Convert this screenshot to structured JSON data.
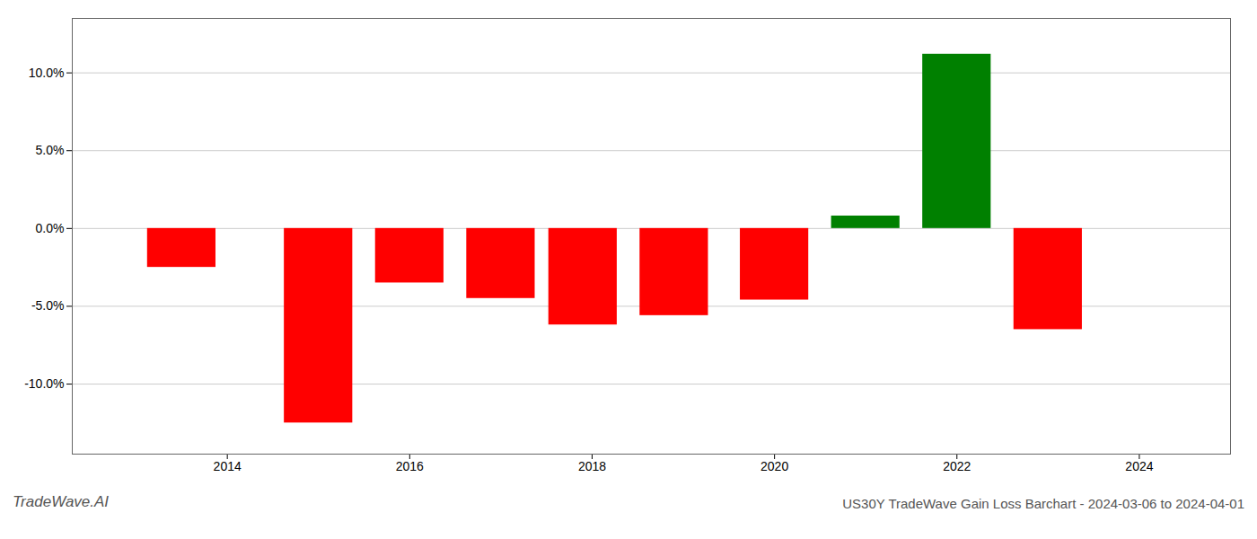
{
  "chart_data": {
    "type": "bar",
    "title": "US30Y TradeWave Gain Loss Barchart - 2024-03-06 to 2024-04-01",
    "annotations": [
      "TradeWave.AI"
    ],
    "x": [
      2013.5,
      2015.0,
      2016.0,
      2017.0,
      2017.9,
      2018.9,
      2020.0,
      2021.0,
      2022.0,
      2023.0
    ],
    "values": [
      -2.5,
      -12.5,
      -3.5,
      -4.5,
      -6.2,
      -5.6,
      -4.6,
      0.8,
      11.2,
      -6.5
    ],
    "colors": [
      "#ff0000",
      "#ff0000",
      "#ff0000",
      "#ff0000",
      "#ff0000",
      "#ff0000",
      "#ff0000",
      "#008000",
      "#008000",
      "#ff0000"
    ],
    "xlim": [
      2012.3,
      2025.0
    ],
    "xticks": [
      2014,
      2016,
      2018,
      2020,
      2022,
      2024
    ],
    "ylim": [
      -14.5,
      13.5
    ],
    "yticks": [
      {
        "value": -10.0,
        "label": "-10.0%"
      },
      {
        "value": -5.0,
        "label": "-5.0%"
      },
      {
        "value": 0.0,
        "label": "0.0%"
      },
      {
        "value": 5.0,
        "label": "5.0%"
      },
      {
        "value": 10.0,
        "label": "10.0%"
      }
    ],
    "grid": true
  }
}
